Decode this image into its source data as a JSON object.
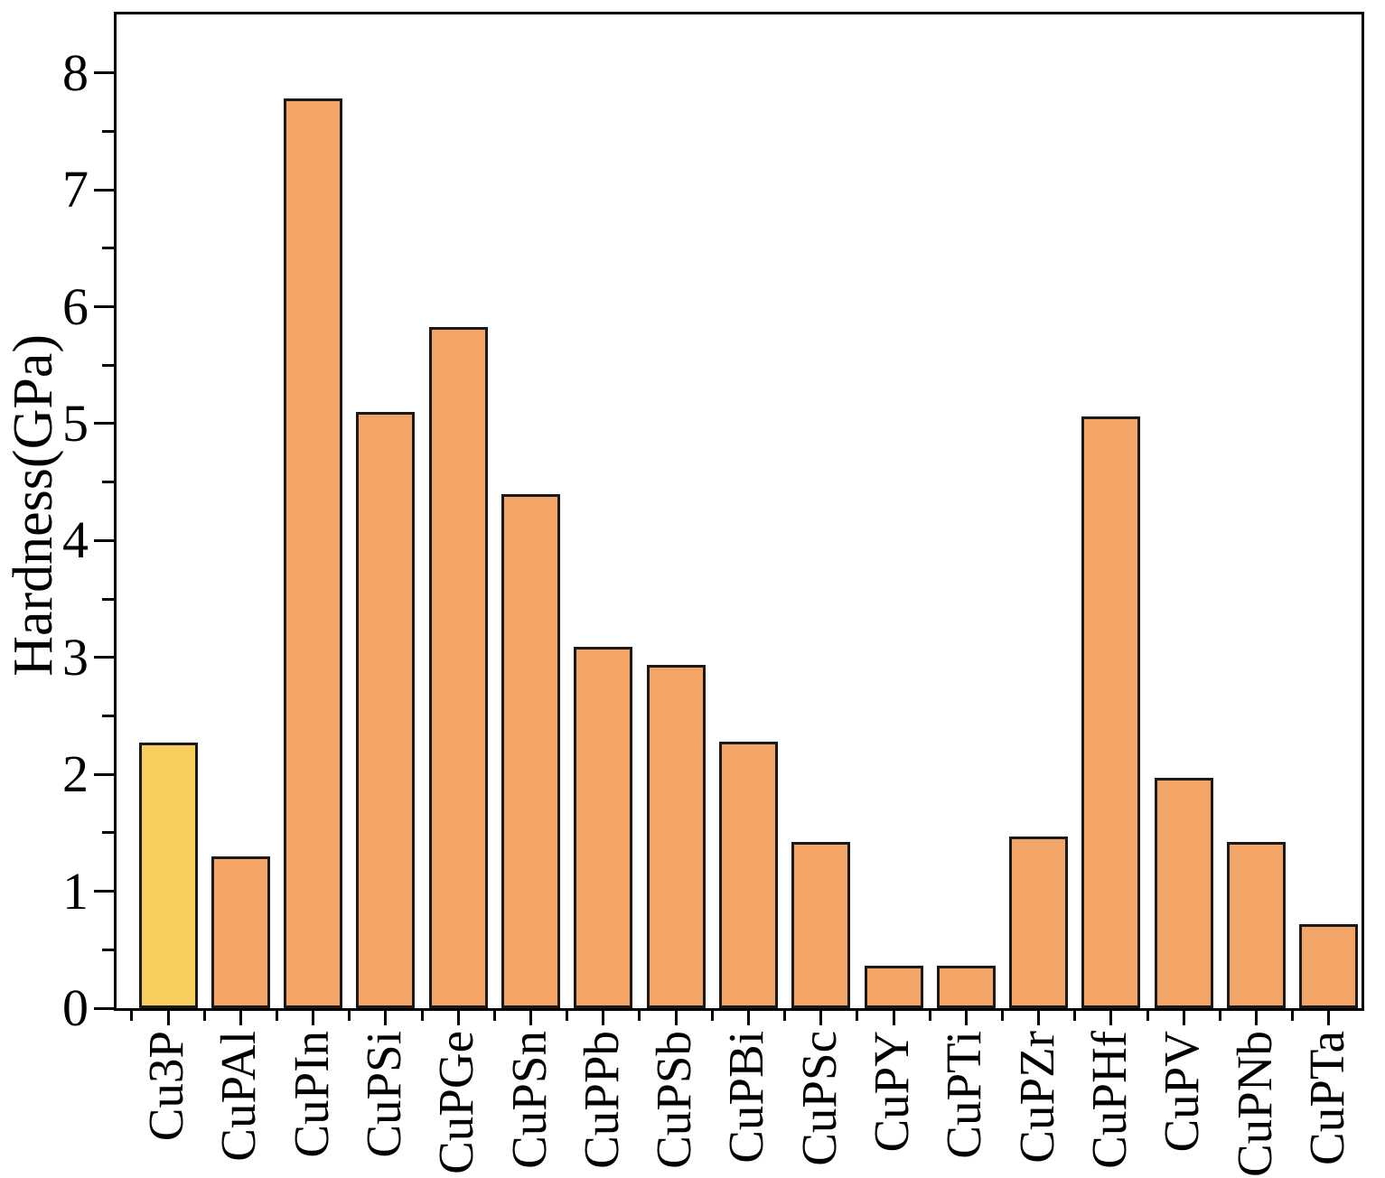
{
  "chart_data": {
    "type": "bar",
    "title": "",
    "xlabel": "",
    "ylabel": "Hardness(GPa)",
    "categories": [
      "Cu3P",
      "CuPAl",
      "CuPIn",
      "CuPSi",
      "CuPGe",
      "CuPSn",
      "CuPPb",
      "CuPSb",
      "CuPBi",
      "CuPSc",
      "CuPY",
      "CuPTi",
      "CuPZr",
      "CuPHf",
      "CuPV",
      "CuPNb",
      "CuPTa"
    ],
    "values": [
      2.27,
      1.3,
      7.78,
      5.1,
      5.83,
      4.4,
      3.09,
      2.94,
      2.28,
      1.42,
      0.36,
      0.36,
      1.47,
      5.06,
      1.97,
      1.42,
      0.72
    ],
    "ylim": [
      0,
      8.5
    ],
    "ytick_labels": [
      "0",
      "1",
      "2",
      "3",
      "4",
      "5",
      "6",
      "7",
      "8"
    ],
    "ytick_minor_step": 0.5,
    "grid": false,
    "legend": "none",
    "colors": {
      "bar_default": "#F2A567",
      "bar_highlight": "#F6CE5C",
      "bar_edge": "#1A1A1A",
      "axis": "#000000"
    },
    "highlighted_category": "Cu3P"
  }
}
